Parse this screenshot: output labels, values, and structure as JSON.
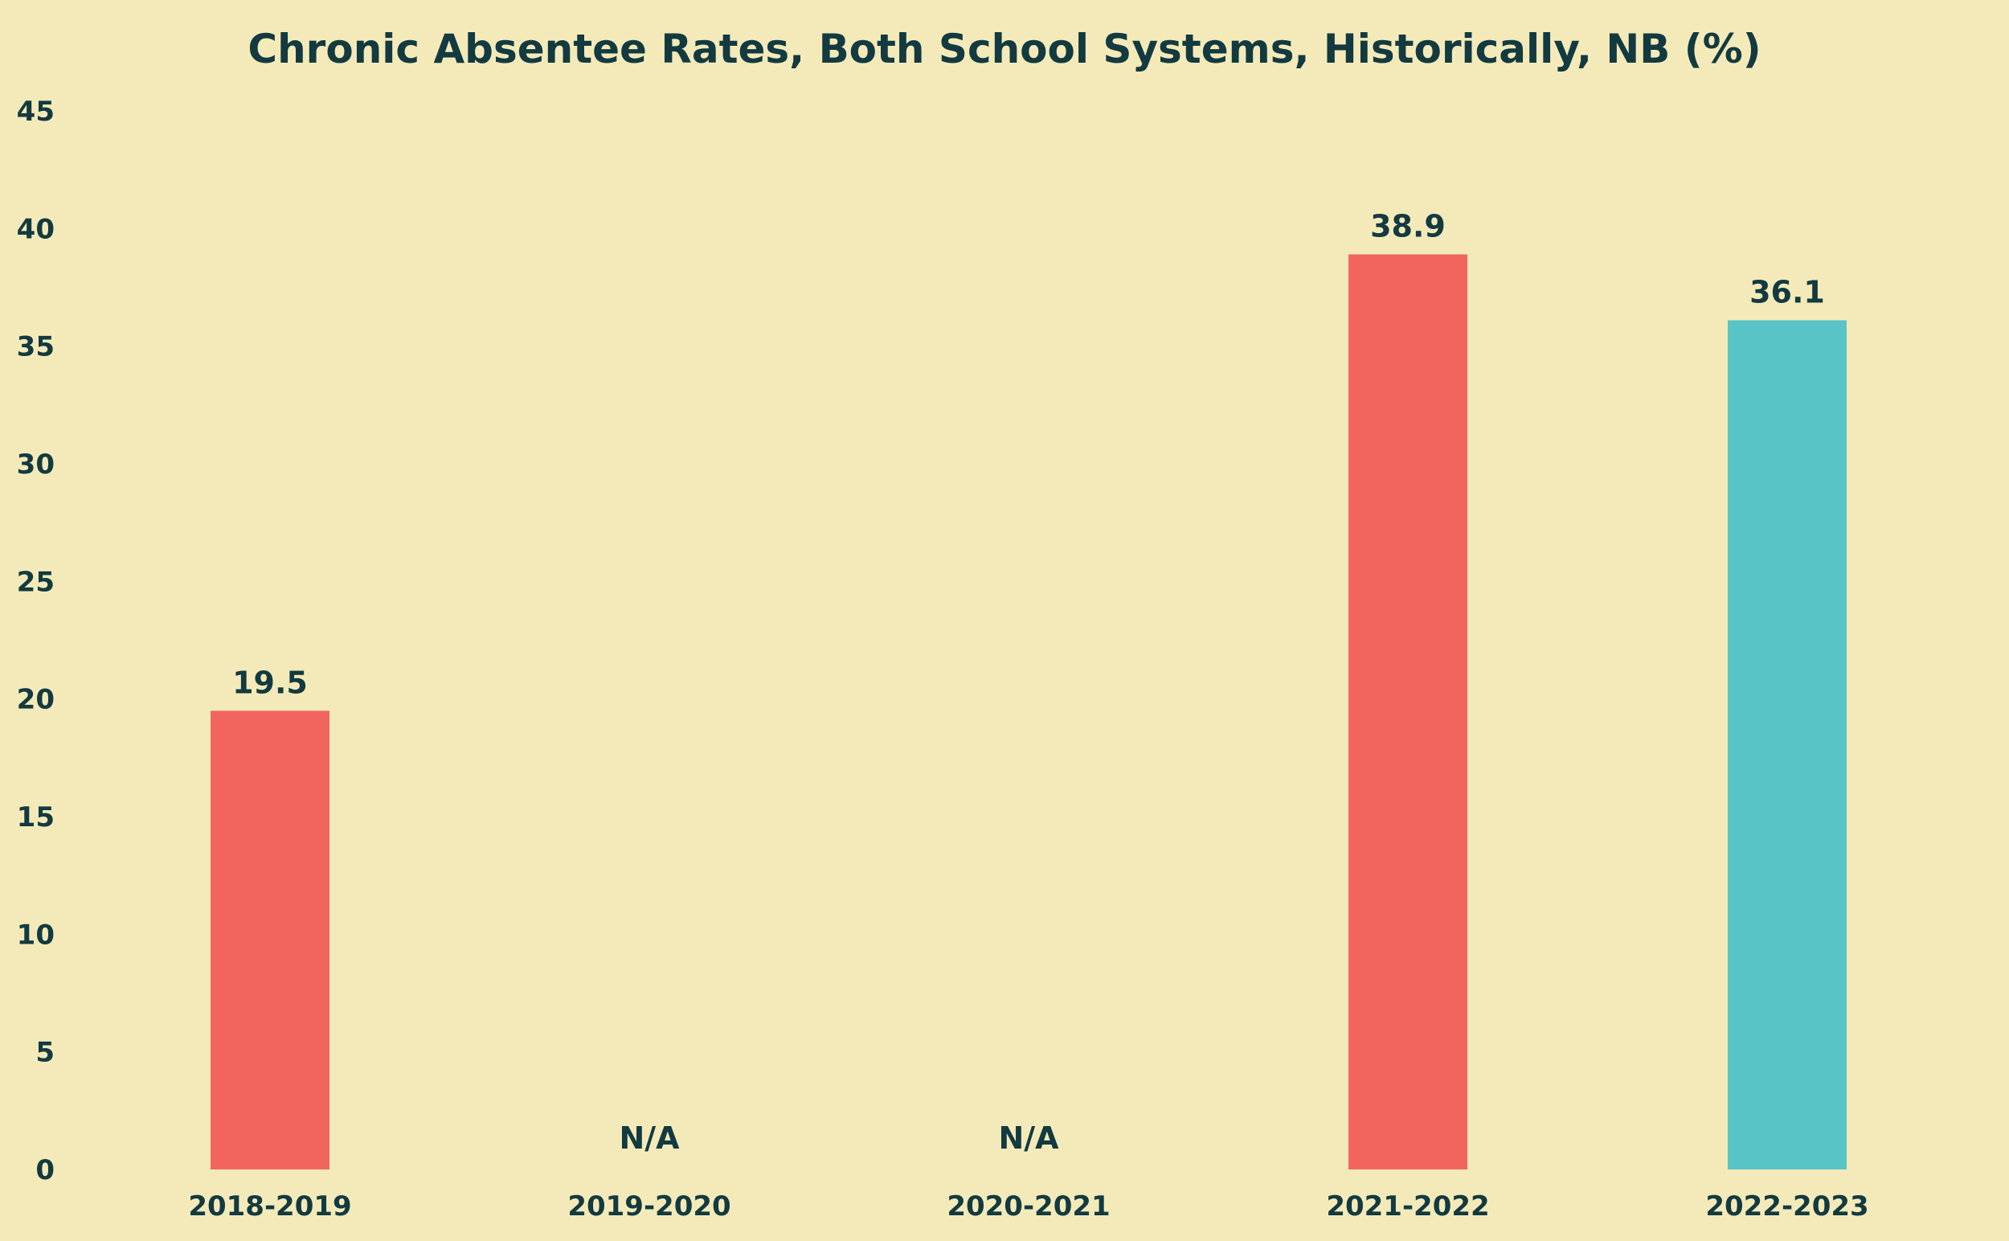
{
  "colors": {
    "background": "#f4eab9",
    "text": "#123a40",
    "bar_red": "#f1655e",
    "bar_teal": "#58c4c6"
  },
  "chart_data": {
    "type": "bar",
    "title": "Chronic Absentee Rates, Both School Systems, Historically, NB (%)",
    "xlabel": "",
    "ylabel": "",
    "categories": [
      "2018-2019",
      "2019-2020",
      "2020-2021",
      "2021-2022",
      "2022-2023"
    ],
    "values": [
      19.5,
      null,
      null,
      38.9,
      36.1
    ],
    "data_labels": [
      "19.5",
      "N/A",
      "N/A",
      "38.9",
      "36.1"
    ],
    "bar_colors": [
      "#f1655e",
      null,
      null,
      "#f1655e",
      "#58c4c6"
    ],
    "ylim": [
      0,
      45
    ],
    "yticks": [
      0,
      5,
      10,
      15,
      20,
      25,
      30,
      35,
      40,
      45
    ],
    "grid": false,
    "legend": "none"
  }
}
